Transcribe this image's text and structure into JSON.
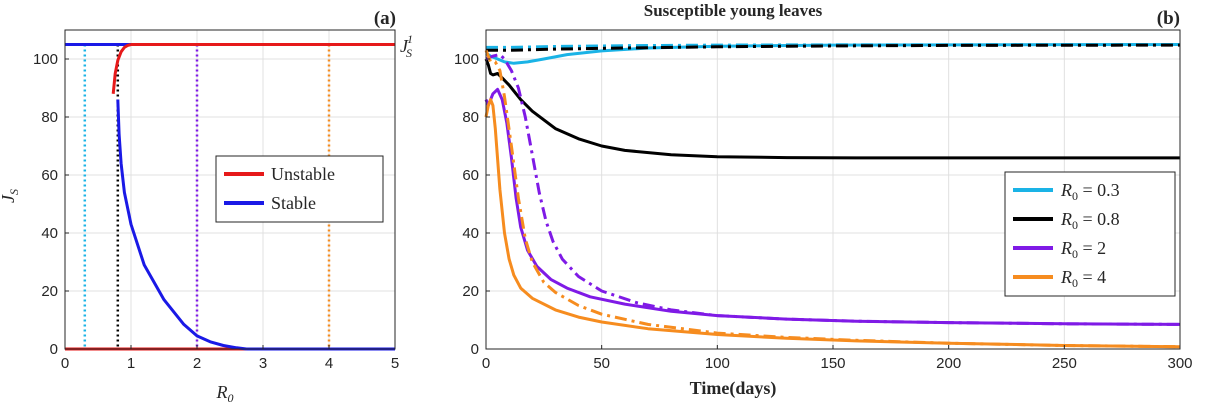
{
  "colors": {
    "cyan": "#1ab3e6",
    "black": "#000000",
    "purple": "#7f1ae6",
    "orange": "#f68c1f",
    "red": "#e6191a",
    "blue": "#1a19e6",
    "grid": "#e0e0e0",
    "axis": "#262626"
  },
  "chart_data": [
    {
      "panel_label": "(a)",
      "type": "line",
      "xlabel": "R",
      "xlabel_sub": "0",
      "ylabel": "J",
      "ylabel_sub": "S",
      "xlim": [
        0,
        5
      ],
      "ylim": [
        0,
        110
      ],
      "xticks": [
        0,
        1,
        2,
        3,
        4,
        5
      ],
      "yticks": [
        0,
        20,
        40,
        60,
        80,
        100
      ],
      "grid": true,
      "legend_position": "center-right",
      "annotation": {
        "main": "J",
        "sub": "S",
        "sup": "1",
        "y": 105
      },
      "series": [
        {
          "name": "Unstable",
          "color": "red",
          "x": [
            1,
            5
          ],
          "y": [
            105,
            105
          ]
        },
        {
          "color": "red",
          "x": [
            0,
            2.75
          ],
          "y": [
            0,
            0
          ]
        },
        {
          "name": "Stable",
          "color": "blue",
          "x": [
            0,
            1
          ],
          "y": [
            105,
            105
          ]
        },
        {
          "color": "blue",
          "x": [
            0.8,
            0.82,
            0.85,
            0.9,
            1.0,
            1.2,
            1.5,
            1.8,
            2.0,
            2.2,
            2.4,
            2.6,
            2.75
          ],
          "y": [
            86,
            74,
            64,
            54,
            43,
            29,
            17,
            8.5,
            4.5,
            2.5,
            1.2,
            0.4,
            0
          ]
        },
        {
          "color": "blue",
          "x": [
            2.75,
            5
          ],
          "y": [
            0,
            0
          ]
        },
        {
          "color": "red",
          "x": [
            0.73,
            0.76,
            0.8,
            0.85,
            0.9,
            0.95,
            1.0
          ],
          "y": [
            88,
            95,
            99.5,
            102.5,
            104,
            104.7,
            105
          ]
        }
      ],
      "vlines": [
        {
          "x": 0.3,
          "color": "cyan"
        },
        {
          "x": 0.8,
          "color": "black"
        },
        {
          "x": 2,
          "color": "purple"
        },
        {
          "x": 4,
          "color": "orange"
        }
      ]
    },
    {
      "panel_label": "(b)",
      "type": "line",
      "title": "Susceptible young leaves",
      "xlabel": "Time(days)",
      "xlim": [
        0,
        300
      ],
      "ylim": [
        0,
        110
      ],
      "xticks": [
        0,
        50,
        100,
        150,
        200,
        250,
        300
      ],
      "yticks": [
        0,
        20,
        40,
        60,
        80,
        100
      ],
      "grid": true,
      "legend_position": "right",
      "legend": [
        {
          "label": "R",
          "sub": "0",
          "value": " = 0.3",
          "color": "cyan"
        },
        {
          "label": "R",
          "sub": "0",
          "value": " = 0.8",
          "color": "black"
        },
        {
          "label": "R",
          "sub": "0",
          "value": " = 2",
          "color": "purple"
        },
        {
          "label": "R",
          "sub": "0",
          "value": " = 4",
          "color": "orange"
        }
      ],
      "series": [
        {
          "color": "cyan",
          "style": "solid",
          "x": [
            0,
            2,
            5,
            8,
            12,
            18,
            25,
            35,
            50,
            70,
            100,
            150,
            300
          ],
          "y": [
            102,
            101,
            100,
            99,
            98.5,
            99,
            100,
            101.5,
            102.8,
            103.8,
            104.4,
            104.8,
            105
          ]
        },
        {
          "color": "cyan",
          "style": "dashdot",
          "x": [
            0,
            10,
            30,
            60,
            100,
            150,
            300
          ],
          "y": [
            104,
            104,
            104.3,
            104.6,
            104.8,
            104.9,
            105
          ]
        },
        {
          "color": "black",
          "style": "solid",
          "x": [
            0,
            1,
            2,
            3,
            5,
            7,
            10,
            15,
            20,
            30,
            40,
            50,
            60,
            80,
            100,
            130,
            160,
            200,
            300
          ],
          "y": [
            100,
            98,
            95,
            94.5,
            95,
            93.5,
            91,
            86,
            82,
            76,
            72.5,
            70,
            68.5,
            67,
            66.3,
            66,
            65.9,
            65.9,
            65.9
          ]
        },
        {
          "color": "black",
          "style": "dashdot",
          "x": [
            0,
            10,
            30,
            60,
            100,
            150,
            200,
            300
          ],
          "y": [
            103,
            103,
            103.4,
            103.8,
            104.2,
            104.5,
            104.7,
            104.8
          ]
        },
        {
          "color": "purple",
          "style": "solid",
          "x": [
            0,
            1,
            3,
            5,
            7,
            9,
            11,
            13,
            15,
            18,
            22,
            28,
            35,
            45,
            60,
            80,
            100,
            130,
            160,
            200,
            250,
            300
          ],
          "y": [
            86,
            84,
            88,
            89.5,
            86,
            78,
            66,
            52,
            42,
            34,
            28.5,
            24,
            21,
            18,
            15.5,
            13,
            11.5,
            10.3,
            9.6,
            9.1,
            8.7,
            8.5
          ]
        },
        {
          "color": "purple",
          "style": "dashdot",
          "x": [
            0,
            3,
            6,
            8,
            11,
            14,
            17,
            20,
            23,
            26,
            29,
            33,
            40,
            50,
            65,
            80,
            100,
            130,
            160,
            200,
            250,
            300
          ],
          "y": [
            100,
            101,
            101.5,
            100,
            96,
            90,
            80,
            67,
            54,
            44,
            37,
            31,
            25,
            20,
            16,
            13.5,
            11.5,
            10.3,
            9.6,
            9.1,
            8.7,
            8.5
          ]
        },
        {
          "color": "orange",
          "style": "solid",
          "x": [
            0,
            1,
            2,
            3,
            4,
            6,
            8,
            10,
            12,
            15,
            20,
            30,
            40,
            50,
            70,
            100,
            130,
            160,
            200,
            250,
            300
          ],
          "y": [
            80,
            84,
            86,
            84,
            76,
            55,
            40,
            31,
            25.5,
            21,
            17.5,
            13.5,
            11,
            9.3,
            7,
            5,
            3.7,
            2.8,
            2,
            1.2,
            0.8
          ]
        },
        {
          "color": "orange",
          "style": "dashdot",
          "x": [
            0,
            2,
            4,
            6,
            8,
            11,
            14,
            17,
            20,
            25,
            30,
            40,
            50,
            70,
            100,
            130,
            160,
            200,
            250,
            300
          ],
          "y": [
            103,
            99,
            99,
            96,
            87,
            70,
            52,
            38,
            30,
            23,
            19.5,
            15,
            12,
            8.5,
            5.5,
            4,
            3,
            2,
            1.2,
            0.8
          ]
        }
      ]
    }
  ]
}
